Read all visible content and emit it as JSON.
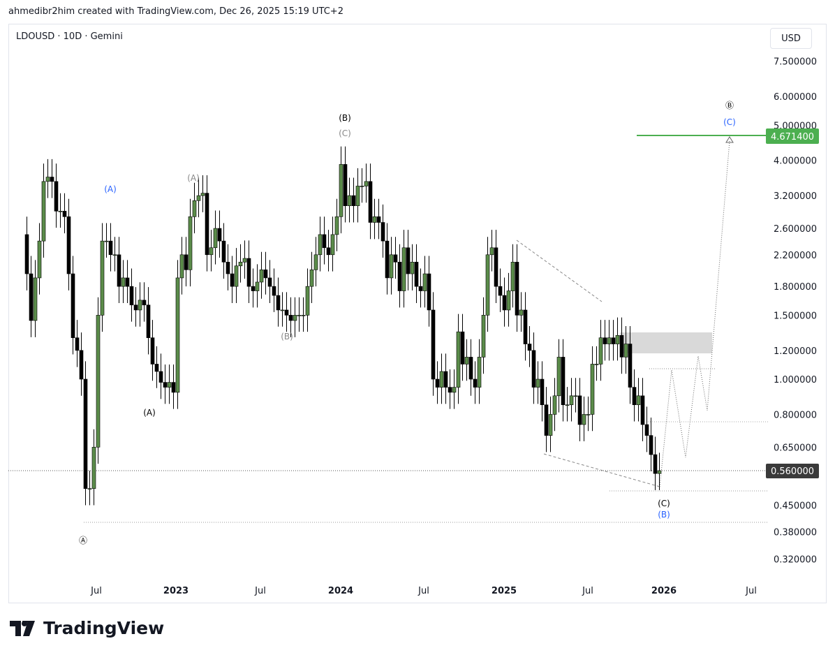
{
  "credit": "ahmedibr2him created with TradingView.com, Dec 26, 2025 15:19 UTC+2",
  "symbol": "LDOUSD · 10D · Gemini",
  "currency": "USD",
  "logo_text": "TradingView",
  "colors": {
    "up": "#5b8c4a",
    "down": "#000000",
    "target": "#4caf50",
    "blue": "#2962ff",
    "gray": "#888888",
    "zone": "#d9d9d9"
  },
  "chart_data": {
    "type": "candlestick",
    "y_scale": "log",
    "ylim": [
      0.29,
      8.5
    ],
    "y_ticks": [
      "7.500000",
      "6.000000",
      "5.000000",
      "4.000000",
      "3.200000",
      "2.600000",
      "2.200000",
      "1.800000",
      "1.500000",
      "1.200000",
      "1.000000",
      "0.800000",
      "0.650000",
      "0.450000",
      "0.380000",
      "0.320000"
    ],
    "x_ticks": [
      "Jul",
      "2023",
      "Jul",
      "2024",
      "Jul",
      "2025",
      "Jul",
      "2026",
      "Jul"
    ],
    "first_open": 2.5,
    "closes": [
      1.95,
      1.45,
      1.9,
      2.4,
      3.5,
      3.6,
      3.5,
      2.9,
      2.9,
      2.8,
      1.95,
      1.3,
      1.2,
      1.0,
      0.5,
      0.5,
      0.65,
      1.5,
      2.4,
      2.4,
      2.2,
      2.2,
      1.8,
      1.9,
      1.8,
      1.6,
      1.55,
      1.65,
      1.6,
      1.3,
      1.1,
      1.05,
      0.98,
      0.95,
      0.98,
      0.92,
      1.9,
      2.2,
      2.0,
      2.8,
      3.1,
      3.2,
      3.25,
      2.2,
      2.3,
      2.6,
      2.4,
      2.1,
      1.95,
      1.8,
      2.05,
      2.1,
      2.15,
      1.8,
      1.75,
      1.85,
      2.0,
      1.9,
      1.8,
      1.7,
      1.55,
      1.55,
      1.5,
      1.45,
      1.5,
      1.5,
      1.5,
      1.8,
      2.0,
      2.2,
      2.5,
      2.3,
      2.2,
      2.5,
      2.8,
      3.9,
      3.0,
      3.2,
      3.0,
      3.4,
      3.4,
      3.5,
      2.7,
      2.8,
      2.7,
      2.4,
      1.9,
      2.2,
      2.1,
      1.75,
      2.3,
      1.95,
      2.1,
      1.8,
      1.75,
      1.95,
      1.55,
      1.0,
      0.95,
      1.05,
      0.95,
      0.92,
      0.95,
      1.35,
      1.1,
      1.15,
      1.0,
      0.95,
      1.15,
      1.5,
      2.2,
      2.3,
      1.8,
      1.7,
      1.55,
      1.75,
      2.1,
      1.5,
      1.55,
      1.25,
      1.2,
      0.95,
      1.0,
      0.85,
      0.7,
      0.8,
      0.9,
      1.15,
      0.85,
      0.85,
      0.9,
      0.9,
      0.75,
      0.8,
      0.8,
      1.1,
      1.1,
      1.3,
      1.25,
      1.3,
      1.25,
      1.32,
      1.15,
      1.25,
      0.95,
      0.85,
      0.9,
      0.75,
      0.7,
      0.62,
      0.55,
      0.56
    ],
    "current_price": "0.560000",
    "target_price": "4.671400",
    "annotations": [
      "Ⓐ",
      "(A)",
      "(A)",
      "(A)",
      "(B)",
      "(B)",
      "(C)",
      "Ⓑ",
      "(C)",
      "(C)",
      "(B)"
    ]
  }
}
